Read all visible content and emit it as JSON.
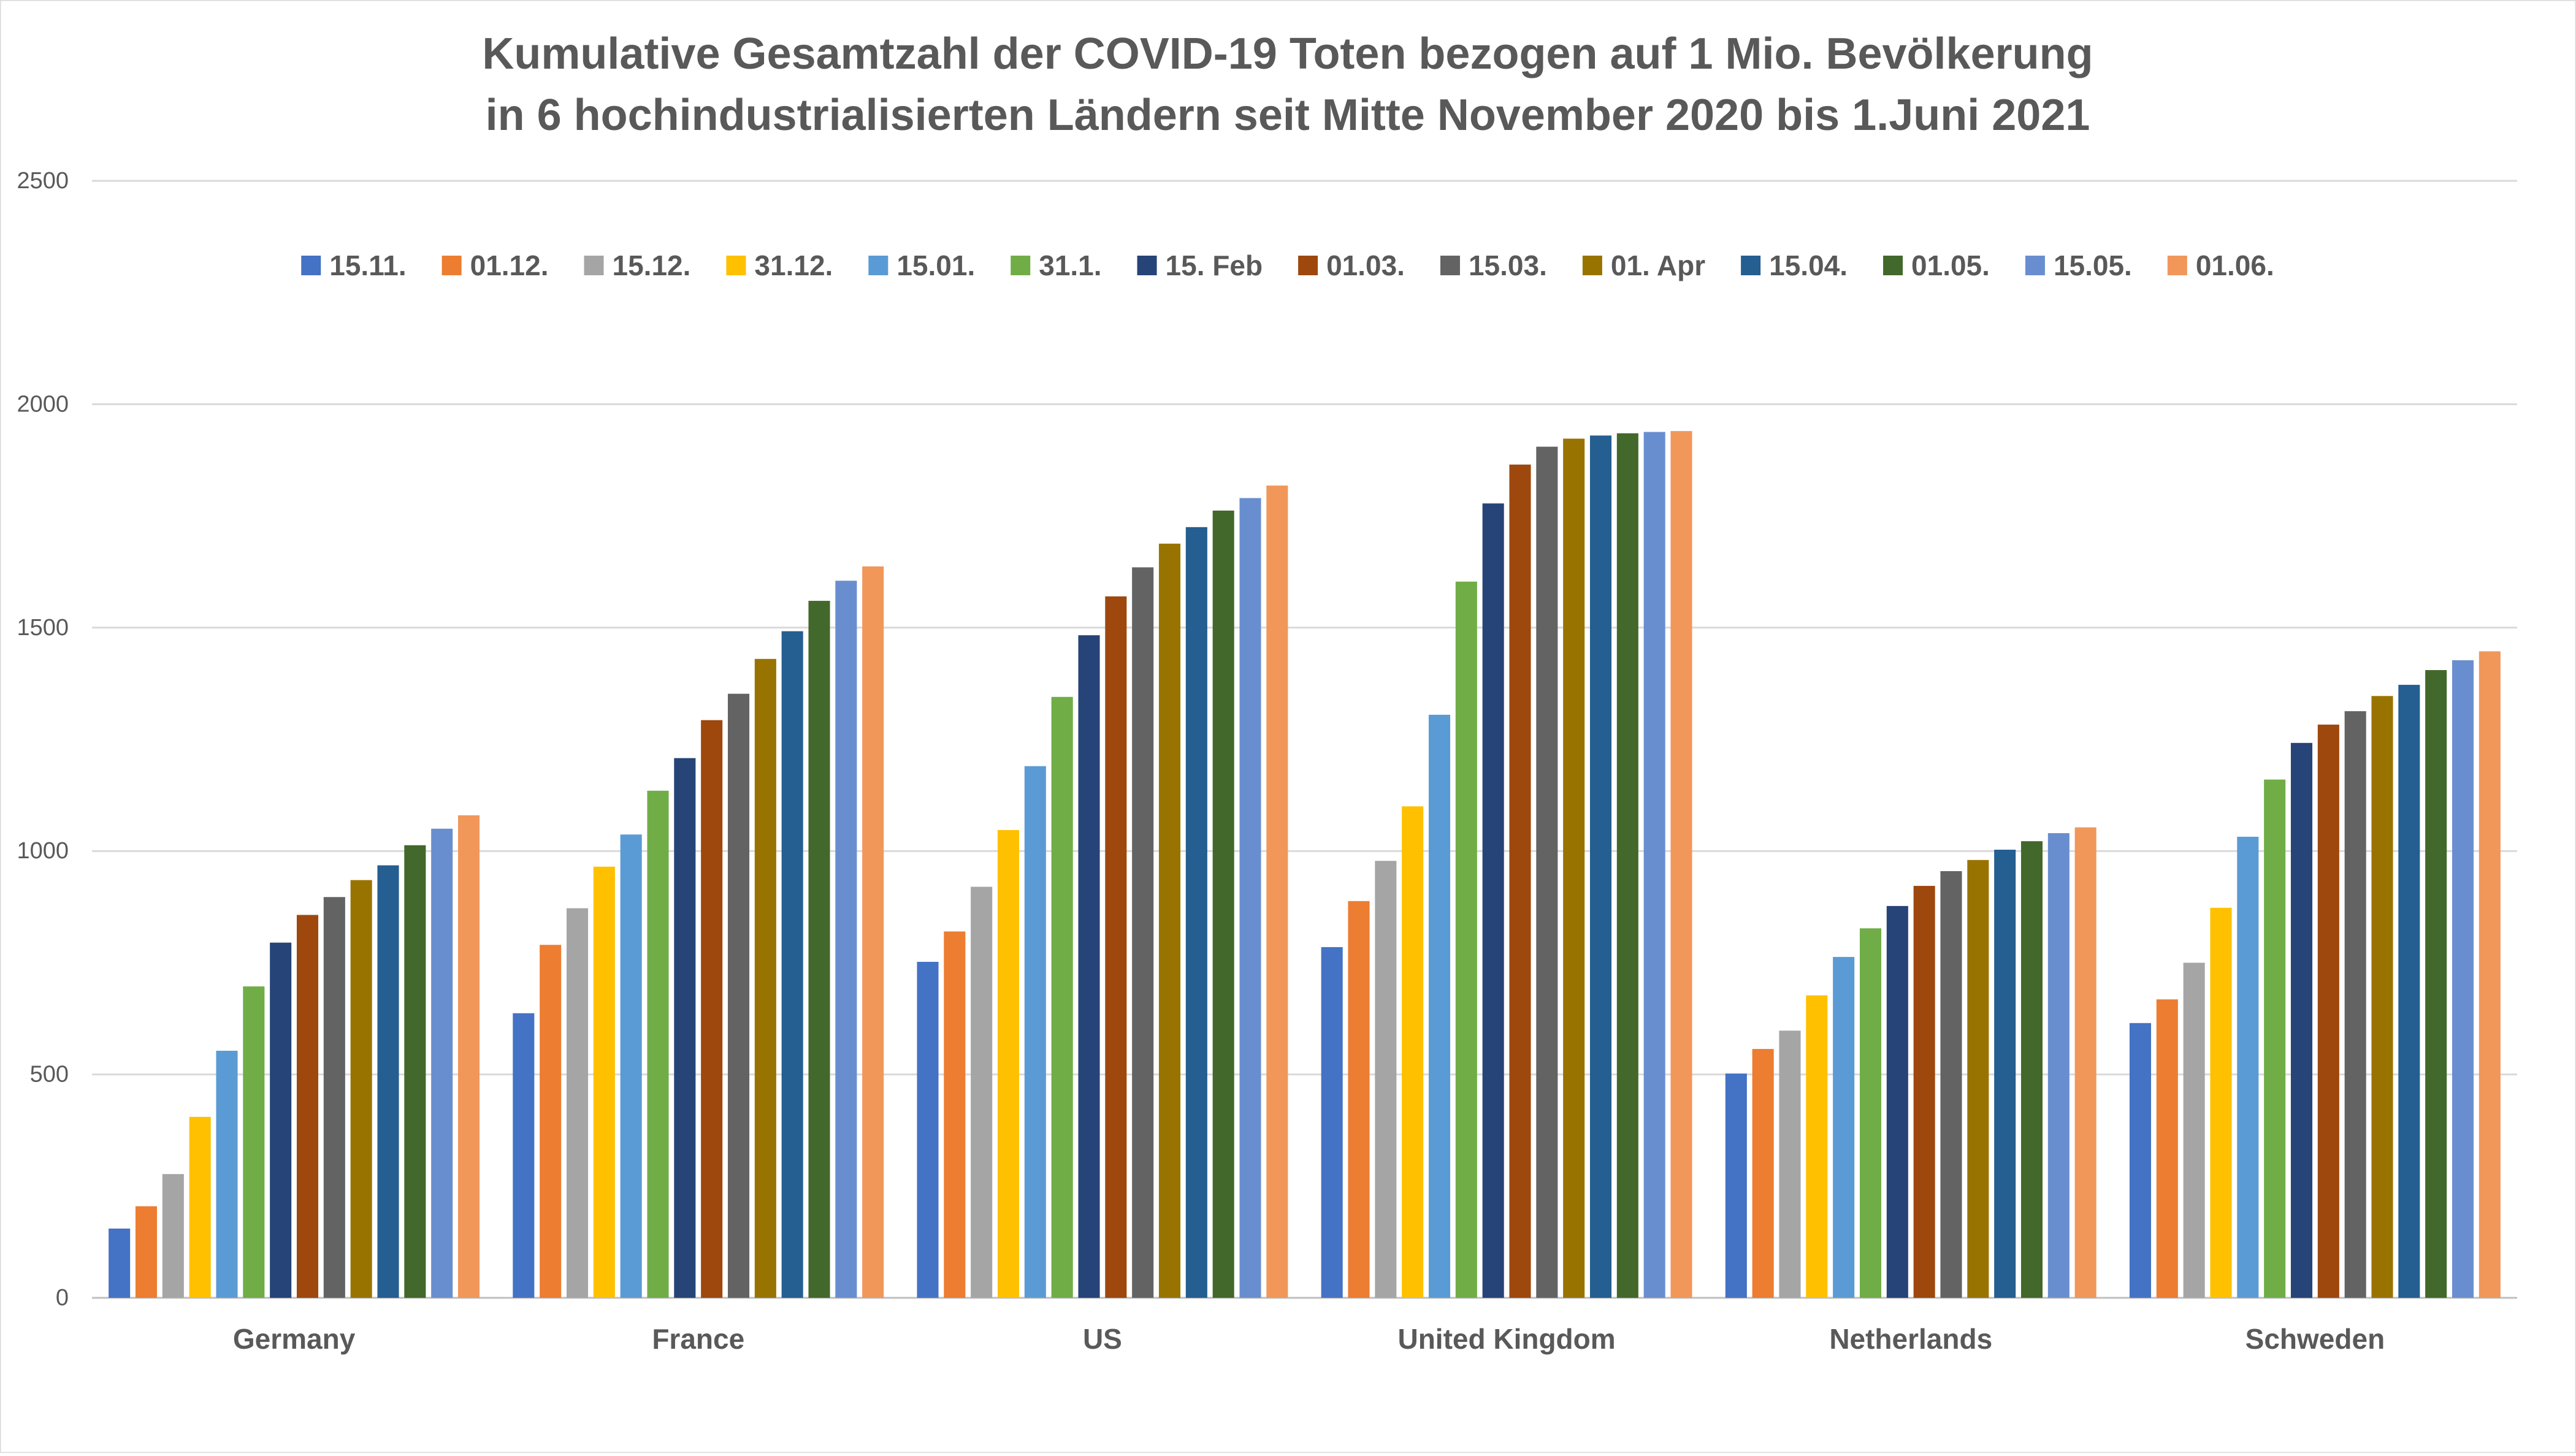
{
  "chart_data": {
    "type": "bar",
    "title_lines": [
      "Kumulative Gesamtzahl der COVID-19 Toten bezogen auf 1 Mio. Bevölkerung",
      "in 6 hochindustrialisierten Ländern seit Mitte November 2020 bis 1.Juni 2021"
    ],
    "xlabel": "",
    "ylabel": "",
    "ylim": [
      0,
      2500
    ],
    "yticks": [
      0,
      500,
      1000,
      1500,
      2000,
      2500
    ],
    "grid": true,
    "legend_position": "top",
    "categories": [
      "Germany",
      "France",
      "US",
      "United Kingdom",
      "Netherlands",
      "Schweden"
    ],
    "series": [
      {
        "name": "15.11.",
        "color": "#4472C4",
        "values": [
          155,
          637,
          752,
          785,
          502,
          615
        ]
      },
      {
        "name": "01.12.",
        "color": "#ED7D31",
        "values": [
          205,
          790,
          820,
          888,
          557,
          668
        ]
      },
      {
        "name": "15.12.",
        "color": "#A5A5A5",
        "values": [
          277,
          872,
          920,
          978,
          598,
          750
        ]
      },
      {
        "name": "31.12.",
        "color": "#FFC000",
        "values": [
          405,
          965,
          1047,
          1100,
          677,
          873
        ]
      },
      {
        "name": "15.01.",
        "color": "#5B9BD5",
        "values": [
          553,
          1037,
          1190,
          1305,
          763,
          1032
        ]
      },
      {
        "name": "31.1.",
        "color": "#70AD47",
        "values": [
          697,
          1135,
          1345,
          1603,
          827,
          1160
        ]
      },
      {
        "name": "15. Feb",
        "color": "#264478",
        "values": [
          795,
          1208,
          1483,
          1778,
          877,
          1242
        ]
      },
      {
        "name": "01.03.",
        "color": "#9E480E",
        "values": [
          857,
          1293,
          1570,
          1865,
          922,
          1283
        ]
      },
      {
        "name": "15.03.",
        "color": "#636363",
        "values": [
          897,
          1352,
          1635,
          1905,
          955,
          1313
        ]
      },
      {
        "name": "01. Apr",
        "color": "#997300",
        "values": [
          935,
          1430,
          1688,
          1923,
          980,
          1347
        ]
      },
      {
        "name": "15.04.",
        "color": "#255E91",
        "values": [
          968,
          1492,
          1725,
          1930,
          1003,
          1372
        ]
      },
      {
        "name": "01.05.",
        "color": "#43682B",
        "values": [
          1013,
          1560,
          1762,
          1935,
          1022,
          1405
        ]
      },
      {
        "name": "15.05.",
        "color": "#698ED0",
        "values": [
          1050,
          1605,
          1790,
          1938,
          1040,
          1427
        ]
      },
      {
        "name": "01.06.",
        "color": "#F1975A",
        "values": [
          1080,
          1637,
          1818,
          1940,
          1053,
          1447
        ]
      }
    ]
  }
}
